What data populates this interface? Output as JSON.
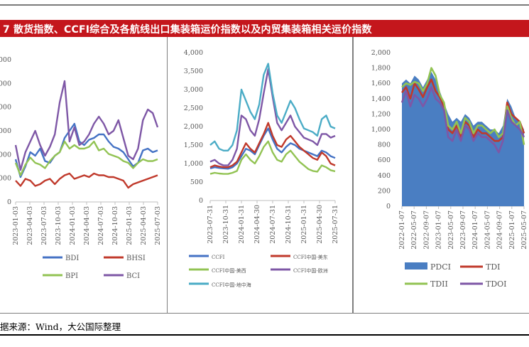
{
  "header": {
    "title": "7  散货指数、CCFI综合及各航线出口集装箱运价指数以及内贸集装箱相关运价指数"
  },
  "footer": {
    "source": "据来源：Wind，大公国际整理"
  },
  "colors": {
    "blue": "#4472c4",
    "red": "#c0392b",
    "green": "#92c353",
    "purple": "#7e57a6",
    "teal": "#4bacc6",
    "area": "#4a7ec2"
  },
  "chart_data": [
    {
      "type": "line",
      "ylim": [
        0,
        4000
      ],
      "yticks": [
        "0",
        "000",
        "000",
        "000",
        "000",
        "000",
        "000"
      ],
      "xticks": [
        "2023-01-03",
        "2023-04-03",
        "2023-07-03",
        "2023-10-03",
        "2024-01-03",
        "2024-04-03",
        "2024-07-03",
        "2024-10-03",
        "2025-01-03",
        "2025-04-03",
        "2025-07-03"
      ],
      "series": [
        {
          "name": "BDI",
          "color": "#4472c4",
          "values": [
            1200,
            700,
            1000,
            1400,
            1300,
            1500,
            1150,
            1100,
            1300,
            1400,
            1800,
            2000,
            2200,
            1700,
            1600,
            1750,
            1800,
            1900,
            1900,
            1700,
            1550,
            1500,
            1400,
            1200,
            1000,
            1100,
            1450,
            1500,
            1400,
            1450
          ]
        },
        {
          "name": "BHSI",
          "color": "#c0392b",
          "values": [
            600,
            450,
            650,
            600,
            450,
            500,
            600,
            650,
            500,
            650,
            750,
            800,
            650,
            700,
            750,
            700,
            800,
            750,
            750,
            700,
            700,
            650,
            600,
            400,
            500,
            550,
            600,
            650,
            700,
            750
          ]
        },
        {
          "name": "BPI",
          "color": "#92c353",
          "values": [
            1100,
            750,
            1050,
            1250,
            1100,
            1050,
            950,
            1150,
            1300,
            1400,
            1700,
            1500,
            1600,
            1500,
            1500,
            1550,
            1700,
            1450,
            1500,
            1350,
            1300,
            1250,
            1150,
            1100,
            950,
            1100,
            1200,
            1150,
            1150,
            1200
          ]
        },
        {
          "name": "BCI",
          "color": "#7e57a6",
          "values": [
            1600,
            900,
            1400,
            1700,
            2000,
            1600,
            1300,
            1550,
            1900,
            2800,
            3400,
            1700,
            2100,
            1600,
            1700,
            1900,
            2200,
            2400,
            2200,
            1900,
            2000,
            2300,
            1800,
            1300,
            1200,
            1500,
            2300,
            2600,
            2500,
            2100
          ]
        }
      ]
    },
    {
      "type": "line",
      "ylim": [
        0,
        4000
      ],
      "yticks": [
        "0",
        "500",
        "1,000",
        "1,500",
        "2,000",
        "2,500",
        "3,000",
        "3,500",
        "4,000"
      ],
      "xticks": [
        "2023-07-31",
        "2023-10-31",
        "2024-01-31",
        "2024-04-30",
        "2024-07-31",
        "2024-10-31",
        "2025-01-31",
        "2025-04-30",
        "2025-07-31"
      ],
      "series": [
        {
          "name": "CCFI",
          "color": "#4472c4",
          "values": [
            870,
            900,
            880,
            870,
            860,
            900,
            1000,
            1200,
            1400,
            1350,
            1250,
            1500,
            1750,
            1950,
            1650,
            1400,
            1300,
            1450,
            1550,
            1500,
            1400,
            1350,
            1300,
            1250,
            1200,
            1350,
            1300,
            1200,
            1150
          ]
        },
        {
          "name": "CCFI中国-美东",
          "color": "#c0392b",
          "values": [
            900,
            950,
            920,
            900,
            900,
            950,
            1050,
            1300,
            1550,
            1400,
            1300,
            1550,
            1800,
            2100,
            1750,
            1500,
            1450,
            1650,
            1750,
            1600,
            1450,
            1350,
            1250,
            1150,
            1100,
            1300,
            1200,
            1000,
            950
          ]
        },
        {
          "name": "CCFI中国-美西",
          "color": "#92c353",
          "values": [
            720,
            750,
            730,
            720,
            720,
            750,
            800,
            1100,
            1250,
            1100,
            1000,
            1200,
            1450,
            1600,
            1300,
            1100,
            1050,
            1250,
            1350,
            1200,
            1050,
            950,
            850,
            800,
            780,
            950,
            900,
            820,
            790
          ]
        },
        {
          "name": "CCFI中国-欧洲",
          "color": "#7e57a6",
          "values": [
            1050,
            1100,
            1000,
            950,
            950,
            1100,
            1400,
            2300,
            2200,
            1900,
            1750,
            2200,
            2900,
            3550,
            2800,
            2100,
            1900,
            2100,
            2300,
            2000,
            1850,
            1700,
            1650,
            1600,
            1500,
            1800,
            1800,
            1700,
            1750
          ]
        },
        {
          "name": "CCFI中国-地中海",
          "color": "#4bacc6",
          "values": [
            1500,
            1600,
            1400,
            1350,
            1350,
            1500,
            1900,
            3000,
            2700,
            2400,
            2200,
            2600,
            3400,
            3700,
            2900,
            2300,
            2100,
            2400,
            2700,
            2500,
            2200,
            1950,
            1900,
            1850,
            1750,
            2200,
            2300,
            2000,
            1950
          ]
        }
      ]
    },
    {
      "type": "area",
      "ylim": [
        0,
        2000
      ],
      "yticks": [
        "0",
        "200",
        "400",
        "600",
        "800",
        "1,000",
        "1,200",
        "1,400",
        "1,600",
        "1,800",
        "2,000"
      ],
      "xticks": [
        "2022-01-07",
        "2022-05-07",
        "2022-09-07",
        "2023-01-07",
        "2023-05-07",
        "2023-09-07",
        "2024-01-07",
        "2024-05-07",
        "2024-09-07",
        "2025-01-07",
        "2025-05-07"
      ],
      "series": [
        {
          "name": "PDCI",
          "color": "#4a7ec2",
          "values": [
            1600,
            1650,
            1600,
            1700,
            1650,
            1550,
            1650,
            1750,
            1650,
            1500,
            1350,
            1200,
            1100,
            1150,
            1100,
            1200,
            1150,
            1050,
            1100,
            1100,
            1050,
            1000,
            1000,
            950,
            1050,
            1400,
            1300,
            1150,
            1100,
            1000
          ]
        },
        {
          "name": "TDI",
          "color": "#c0392b",
          "values": [
            1480,
            1550,
            1400,
            1600,
            1520,
            1420,
            1550,
            1650,
            1500,
            1420,
            1300,
            1000,
            950,
            1050,
            900,
            1100,
            1050,
            900,
            1000,
            950,
            950,
            900,
            850,
            850,
            900,
            1350,
            1200,
            1150,
            1100,
            950
          ]
        },
        {
          "name": "TDII",
          "color": "#92c353",
          "values": [
            1550,
            1600,
            1580,
            1620,
            1600,
            1500,
            1600,
            1800,
            1700,
            1450,
            1350,
            1050,
            1000,
            1100,
            950,
            1150,
            1100,
            950,
            1050,
            1050,
            1000,
            950,
            1000,
            900,
            950,
            1300,
            1150,
            1050,
            1100,
            800
          ]
        },
        {
          "name": "TDOI",
          "color": "#7e57a6",
          "values": [
            1350,
            1500,
            1300,
            1450,
            1400,
            1300,
            1400,
            1550,
            1400,
            1350,
            1250,
            900,
            850,
            1000,
            850,
            1050,
            1000,
            850,
            950,
            900,
            900,
            850,
            800,
            700,
            850,
            1250,
            1100,
            1050,
            1000,
            900
          ]
        }
      ]
    }
  ]
}
